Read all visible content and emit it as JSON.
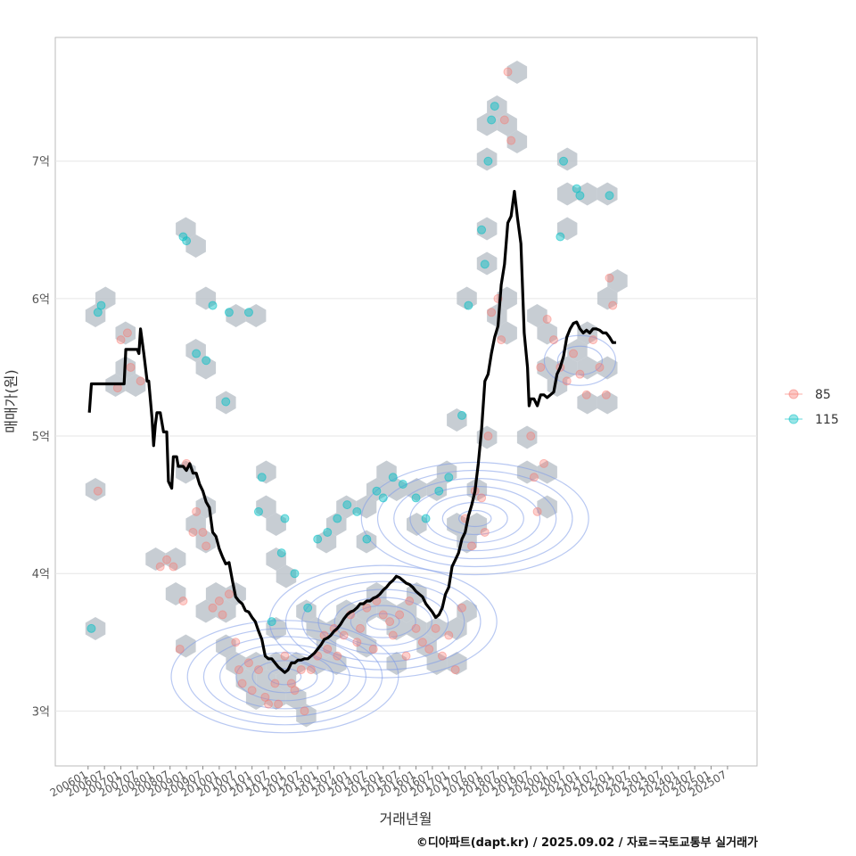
{
  "chart_data": {
    "type": "scatter",
    "xlabel": "거래년월",
    "ylabel": "매매가(원)",
    "x_tick_labels": [
      "200601",
      "200607",
      "200701",
      "200707",
      "200801",
      "200807",
      "200901",
      "200907",
      "201001",
      "201007",
      "201101",
      "201107",
      "201201",
      "201207",
      "201301",
      "201307",
      "201401",
      "201407",
      "201501",
      "201507",
      "201601",
      "201607",
      "201701",
      "201707",
      "201801",
      "201807",
      "201901",
      "201907",
      "202001",
      "202007",
      "202101",
      "202107",
      "202201",
      "202207",
      "202301",
      "202307",
      "202401",
      "202407",
      "202501",
      "202507"
    ],
    "y_ticks": [
      3,
      4,
      5,
      6,
      7
    ],
    "y_tick_labels": [
      "3억",
      "4억",
      "5억",
      "6억",
      "7억"
    ],
    "ylim": [
      2.6,
      7.9
    ],
    "xlim": [
      2005.0,
      2026.4
    ],
    "grid": true,
    "legend_position": "right",
    "series": [
      {
        "name": "85",
        "color": "#F8766D"
      },
      {
        "name": "115",
        "color": "#00BFC4"
      }
    ],
    "median_line": [
      [
        2006.04,
        5.17
      ],
      [
        2006.1,
        5.38
      ],
      [
        2006.5,
        5.38
      ],
      [
        2006.9,
        5.38
      ],
      [
        2007.0,
        5.38
      ],
      [
        2007.1,
        5.38
      ],
      [
        2007.15,
        5.63
      ],
      [
        2007.5,
        5.63
      ],
      [
        2007.55,
        5.6
      ],
      [
        2007.6,
        5.78
      ],
      [
        2007.7,
        5.6
      ],
      [
        2007.8,
        5.4
      ],
      [
        2007.85,
        5.4
      ],
      [
        2007.95,
        5.13
      ],
      [
        2008.0,
        4.93
      ],
      [
        2008.05,
        5.08
      ],
      [
        2008.1,
        5.17
      ],
      [
        2008.2,
        5.17
      ],
      [
        2008.3,
        5.03
      ],
      [
        2008.4,
        5.03
      ],
      [
        2008.45,
        4.67
      ],
      [
        2008.55,
        4.62
      ],
      [
        2008.6,
        4.85
      ],
      [
        2008.7,
        4.85
      ],
      [
        2008.75,
        4.78
      ],
      [
        2008.9,
        4.78
      ],
      [
        2009.0,
        4.75
      ],
      [
        2009.1,
        4.8
      ],
      [
        2009.2,
        4.73
      ],
      [
        2009.3,
        4.73
      ],
      [
        2009.4,
        4.65
      ],
      [
        2009.5,
        4.6
      ],
      [
        2009.6,
        4.52
      ],
      [
        2009.7,
        4.48
      ],
      [
        2009.8,
        4.3
      ],
      [
        2009.9,
        4.27
      ],
      [
        2010.0,
        4.18
      ],
      [
        2010.1,
        4.12
      ],
      [
        2010.2,
        4.07
      ],
      [
        2010.3,
        4.08
      ],
      [
        2010.4,
        3.95
      ],
      [
        2010.5,
        3.83
      ],
      [
        2010.6,
        3.8
      ],
      [
        2010.7,
        3.78
      ],
      [
        2010.8,
        3.73
      ],
      [
        2010.9,
        3.72
      ],
      [
        2011.0,
        3.68
      ],
      [
        2011.1,
        3.65
      ],
      [
        2011.2,
        3.58
      ],
      [
        2011.3,
        3.52
      ],
      [
        2011.4,
        3.4
      ],
      [
        2011.5,
        3.38
      ],
      [
        2011.6,
        3.38
      ],
      [
        2011.7,
        3.35
      ],
      [
        2011.8,
        3.32
      ],
      [
        2011.9,
        3.3
      ],
      [
        2012.0,
        3.28
      ],
      [
        2012.1,
        3.3
      ],
      [
        2012.2,
        3.35
      ],
      [
        2012.3,
        3.35
      ],
      [
        2012.4,
        3.37
      ],
      [
        2012.5,
        3.37
      ],
      [
        2012.6,
        3.38
      ],
      [
        2012.7,
        3.38
      ],
      [
        2012.8,
        3.4
      ],
      [
        2012.9,
        3.42
      ],
      [
        2013.0,
        3.45
      ],
      [
        2013.1,
        3.48
      ],
      [
        2013.2,
        3.52
      ],
      [
        2013.3,
        3.53
      ],
      [
        2013.4,
        3.55
      ],
      [
        2013.5,
        3.58
      ],
      [
        2013.6,
        3.6
      ],
      [
        2013.7,
        3.63
      ],
      [
        2013.8,
        3.67
      ],
      [
        2013.9,
        3.7
      ],
      [
        2014.0,
        3.72
      ],
      [
        2014.1,
        3.73
      ],
      [
        2014.2,
        3.75
      ],
      [
        2014.3,
        3.78
      ],
      [
        2014.4,
        3.78
      ],
      [
        2014.5,
        3.8
      ],
      [
        2014.6,
        3.8
      ],
      [
        2014.7,
        3.82
      ],
      [
        2014.8,
        3.83
      ],
      [
        2014.9,
        3.85
      ],
      [
        2015.0,
        3.88
      ],
      [
        2015.1,
        3.9
      ],
      [
        2015.2,
        3.93
      ],
      [
        2015.3,
        3.95
      ],
      [
        2015.4,
        3.98
      ],
      [
        2015.5,
        3.97
      ],
      [
        2015.6,
        3.95
      ],
      [
        2015.7,
        3.93
      ],
      [
        2015.8,
        3.92
      ],
      [
        2015.9,
        3.9
      ],
      [
        2016.0,
        3.87
      ],
      [
        2016.1,
        3.85
      ],
      [
        2016.2,
        3.83
      ],
      [
        2016.3,
        3.78
      ],
      [
        2016.4,
        3.75
      ],
      [
        2016.5,
        3.72
      ],
      [
        2016.6,
        3.68
      ],
      [
        2016.7,
        3.7
      ],
      [
        2016.8,
        3.75
      ],
      [
        2016.9,
        3.85
      ],
      [
        2017.0,
        3.9
      ],
      [
        2017.1,
        4.05
      ],
      [
        2017.2,
        4.1
      ],
      [
        2017.3,
        4.15
      ],
      [
        2017.4,
        4.25
      ],
      [
        2017.5,
        4.3
      ],
      [
        2017.6,
        4.42
      ],
      [
        2017.7,
        4.5
      ],
      [
        2017.8,
        4.6
      ],
      [
        2017.9,
        4.8
      ],
      [
        2018.0,
        5.05
      ],
      [
        2018.1,
        5.4
      ],
      [
        2018.2,
        5.45
      ],
      [
        2018.3,
        5.6
      ],
      [
        2018.4,
        5.72
      ],
      [
        2018.5,
        5.8
      ],
      [
        2018.6,
        6.1
      ],
      [
        2018.7,
        6.25
      ],
      [
        2018.8,
        6.55
      ],
      [
        2018.9,
        6.6
      ],
      [
        2019.0,
        6.78
      ],
      [
        2019.1,
        6.58
      ],
      [
        2019.2,
        6.4
      ],
      [
        2019.3,
        5.75
      ],
      [
        2019.4,
        5.5
      ],
      [
        2019.45,
        5.22
      ],
      [
        2019.5,
        5.27
      ],
      [
        2019.6,
        5.27
      ],
      [
        2019.7,
        5.22
      ],
      [
        2019.8,
        5.3
      ],
      [
        2019.9,
        5.3
      ],
      [
        2020.0,
        5.28
      ],
      [
        2020.1,
        5.3
      ],
      [
        2020.2,
        5.32
      ],
      [
        2020.3,
        5.45
      ],
      [
        2020.4,
        5.5
      ],
      [
        2020.5,
        5.58
      ],
      [
        2020.6,
        5.72
      ],
      [
        2020.7,
        5.78
      ],
      [
        2020.8,
        5.82
      ],
      [
        2020.9,
        5.83
      ],
      [
        2021.0,
        5.78
      ],
      [
        2021.1,
        5.75
      ],
      [
        2021.2,
        5.77
      ],
      [
        2021.3,
        5.75
      ],
      [
        2021.4,
        5.78
      ],
      [
        2021.5,
        5.78
      ],
      [
        2021.6,
        5.77
      ],
      [
        2021.7,
        5.75
      ],
      [
        2021.8,
        5.75
      ],
      [
        2021.9,
        5.72
      ],
      [
        2022.0,
        5.68
      ],
      [
        2022.1,
        5.68
      ]
    ],
    "points_85": [
      [
        2006.3,
        4.6
      ],
      [
        2006.9,
        5.35
      ],
      [
        2007.0,
        5.7
      ],
      [
        2007.2,
        5.75
      ],
      [
        2007.3,
        5.5
      ],
      [
        2007.6,
        5.4
      ],
      [
        2008.2,
        4.05
      ],
      [
        2008.4,
        4.1
      ],
      [
        2008.6,
        4.05
      ],
      [
        2008.8,
        3.45
      ],
      [
        2008.9,
        3.8
      ],
      [
        2009.0,
        4.8
      ],
      [
        2009.2,
        4.3
      ],
      [
        2009.3,
        4.45
      ],
      [
        2009.5,
        4.3
      ],
      [
        2009.6,
        4.2
      ],
      [
        2009.8,
        3.75
      ],
      [
        2010.0,
        3.8
      ],
      [
        2010.1,
        3.7
      ],
      [
        2010.3,
        3.85
      ],
      [
        2010.5,
        3.5
      ],
      [
        2010.6,
        3.3
      ],
      [
        2010.7,
        3.2
      ],
      [
        2010.9,
        3.35
      ],
      [
        2011.0,
        3.15
      ],
      [
        2011.2,
        3.3
      ],
      [
        2011.4,
        3.1
      ],
      [
        2011.5,
        3.05
      ],
      [
        2011.7,
        3.2
      ],
      [
        2011.8,
        3.05
      ],
      [
        2012.0,
        3.4
      ],
      [
        2012.2,
        3.2
      ],
      [
        2012.3,
        3.15
      ],
      [
        2012.5,
        3.3
      ],
      [
        2012.6,
        3.0
      ],
      [
        2012.8,
        3.3
      ],
      [
        2013.0,
        3.4
      ],
      [
        2013.2,
        3.55
      ],
      [
        2013.3,
        3.45
      ],
      [
        2013.5,
        3.6
      ],
      [
        2013.6,
        3.4
      ],
      [
        2013.8,
        3.55
      ],
      [
        2014.0,
        3.7
      ],
      [
        2014.2,
        3.5
      ],
      [
        2014.3,
        3.6
      ],
      [
        2014.5,
        3.75
      ],
      [
        2014.7,
        3.45
      ],
      [
        2014.8,
        3.8
      ],
      [
        2015.0,
        3.7
      ],
      [
        2015.2,
        3.65
      ],
      [
        2015.3,
        3.55
      ],
      [
        2015.5,
        3.7
      ],
      [
        2015.7,
        3.4
      ],
      [
        2015.8,
        3.8
      ],
      [
        2016.0,
        3.6
      ],
      [
        2016.2,
        3.5
      ],
      [
        2016.4,
        3.45
      ],
      [
        2016.6,
        3.6
      ],
      [
        2016.8,
        3.4
      ],
      [
        2017.0,
        3.55
      ],
      [
        2017.2,
        3.3
      ],
      [
        2017.4,
        3.75
      ],
      [
        2017.5,
        4.4
      ],
      [
        2017.7,
        4.2
      ],
      [
        2017.8,
        4.6
      ],
      [
        2018.0,
        4.55
      ],
      [
        2018.1,
        4.3
      ],
      [
        2018.2,
        5.0
      ],
      [
        2018.3,
        5.9
      ],
      [
        2018.5,
        6.0
      ],
      [
        2018.6,
        5.7
      ],
      [
        2018.7,
        7.3
      ],
      [
        2018.8,
        7.65
      ],
      [
        2018.9,
        7.15
      ],
      [
        2019.5,
        5.0
      ],
      [
        2019.6,
        4.7
      ],
      [
        2019.7,
        4.45
      ],
      [
        2019.8,
        5.5
      ],
      [
        2019.9,
        4.8
      ],
      [
        2020.0,
        5.85
      ],
      [
        2020.2,
        5.7
      ],
      [
        2020.4,
        5.5
      ],
      [
        2020.6,
        5.4
      ],
      [
        2020.8,
        5.6
      ],
      [
        2021.0,
        5.45
      ],
      [
        2021.2,
        5.3
      ],
      [
        2021.4,
        5.7
      ],
      [
        2021.6,
        5.5
      ],
      [
        2021.8,
        5.3
      ],
      [
        2022.0,
        5.95
      ],
      [
        2021.9,
        6.15
      ]
    ],
    "points_115": [
      [
        2006.1,
        3.6
      ],
      [
        2006.3,
        5.9
      ],
      [
        2006.4,
        5.95
      ],
      [
        2008.9,
        6.45
      ],
      [
        2009.0,
        6.42
      ],
      [
        2009.3,
        5.6
      ],
      [
        2009.6,
        5.55
      ],
      [
        2009.8,
        5.95
      ],
      [
        2010.2,
        5.25
      ],
      [
        2010.3,
        5.9
      ],
      [
        2010.9,
        5.9
      ],
      [
        2011.2,
        4.45
      ],
      [
        2011.3,
        4.7
      ],
      [
        2011.6,
        3.65
      ],
      [
        2011.9,
        4.15
      ],
      [
        2012.0,
        4.4
      ],
      [
        2012.3,
        4.0
      ],
      [
        2012.7,
        3.75
      ],
      [
        2013.0,
        4.25
      ],
      [
        2013.3,
        4.3
      ],
      [
        2013.6,
        4.4
      ],
      [
        2013.9,
        4.5
      ],
      [
        2014.2,
        4.45
      ],
      [
        2014.5,
        4.25
      ],
      [
        2014.8,
        4.6
      ],
      [
        2015.0,
        4.55
      ],
      [
        2015.3,
        4.7
      ],
      [
        2015.6,
        4.65
      ],
      [
        2016.0,
        4.55
      ],
      [
        2016.3,
        4.4
      ],
      [
        2016.7,
        4.6
      ],
      [
        2017.0,
        4.7
      ],
      [
        2017.4,
        5.15
      ],
      [
        2017.6,
        5.95
      ],
      [
        2018.0,
        6.5
      ],
      [
        2018.1,
        6.25
      ],
      [
        2018.2,
        7.0
      ],
      [
        2018.3,
        7.3
      ],
      [
        2018.4,
        7.4
      ],
      [
        2020.4,
        6.45
      ],
      [
        2020.5,
        7.0
      ],
      [
        2020.9,
        6.8
      ],
      [
        2021.0,
        6.75
      ],
      [
        2021.9,
        6.75
      ]
    ]
  },
  "legend": {
    "items": [
      {
        "label": "85",
        "color": "#F8766D"
      },
      {
        "label": "115",
        "color": "#00BFC4"
      }
    ]
  },
  "caption": "©디아파트(dapt.kr) / 2025.09.02 / 자료=국토교통부 실거래가"
}
